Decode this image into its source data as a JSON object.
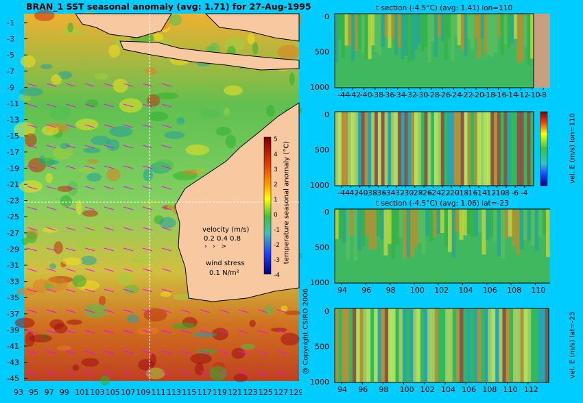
{
  "main_title": "BRAN_1  SST seasonal anomaly  (avg: 1.71) for 27-Aug-1995",
  "copyright": "@ Copyright CSIRO 2006",
  "map": {
    "lat_ticks": [
      "-1",
      "-3",
      "-5",
      "-7",
      "-9",
      "-11",
      "-13",
      "-15",
      "-17",
      "-19",
      "-21",
      "-23",
      "-25",
      "-27",
      "-29",
      "-31",
      "-33",
      "-35",
      "-37",
      "-39",
      "-41",
      "-43",
      "-45"
    ],
    "lon_ticks": [
      "93",
      "95",
      "97",
      "99",
      "101",
      "103",
      "105",
      "107",
      "109",
      "111",
      "113",
      "115",
      "117",
      "119",
      "121",
      "123",
      "125",
      "127",
      "129"
    ],
    "colorbar": {
      "label": "temperature seasonal anomaly (°C)",
      "ticks": [
        "5",
        "4",
        "3",
        "2",
        "1",
        "0",
        "-1",
        "-2",
        "-3",
        "-4"
      ]
    },
    "velocity_legend": {
      "title": "velocity (m/s)",
      "scale": "0.2 0.4 0.8"
    },
    "wind_legend": {
      "title": "wind stress",
      "value": "0.1 N/m²"
    },
    "colors": {
      "land": "#f8c8a0",
      "arrows": "#ff00ff",
      "crosshair": "#ffffff"
    }
  },
  "panels": [
    {
      "title": "t section (-4.5°C)  (avg: 1.41) lon=110",
      "yticks": [
        "0",
        "500",
        "1000"
      ],
      "xticks": [
        "-44",
        "-42",
        "-40",
        "-38",
        "-36",
        "-34",
        "-32",
        "-30",
        "-28",
        "-26",
        "-24",
        "-22",
        "-20",
        "-18",
        "-16",
        "-14",
        "-12",
        "-10",
        "-8",
        "-6",
        "-4"
      ]
    },
    {
      "title": "",
      "yticks": [
        "0",
        "500",
        "1000"
      ],
      "xticks": [
        "-44",
        "-42",
        "-40",
        "-38",
        "-36",
        "-34",
        "-32",
        "-30",
        "-28",
        "-26",
        "-24",
        "-22",
        "-20",
        "-18",
        "-16",
        "-14",
        "-12",
        "-10",
        "-8",
        "-6",
        "-4"
      ],
      "colorbar_label": "vel. E (m/s) lon=110",
      "colorbar_ticks": [
        "0.4",
        "0.2",
        "0",
        "-0.2",
        "-0.4"
      ]
    },
    {
      "title": "t section (-4.5°C)  (avg: 1.06) lat=-23",
      "yticks": [
        "0",
        "500",
        "1000"
      ],
      "xticks": [
        "94",
        "96",
        "98",
        "100",
        "102",
        "104",
        "106",
        "108",
        "110",
        "112"
      ]
    },
    {
      "title": "",
      "yticks": [
        "0",
        "500",
        "1000"
      ],
      "xticks": [
        "94",
        "96",
        "98",
        "100",
        "102",
        "104",
        "106",
        "108",
        "110",
        "112"
      ],
      "colorbar_label": "vel. E (m/s) lat=-23",
      "colorbar_ticks": [
        "0.4",
        "0.2",
        "0",
        "-0.2",
        "-0.4"
      ]
    }
  ],
  "chart_data": [
    {
      "type": "heatmap",
      "title": "BRAN_1  SST seasonal anomaly  (avg: 1.71) for 27-Aug-1995",
      "xlabel": "",
      "ylabel": "",
      "xlim": [
        93,
        130
      ],
      "ylim": [
        -45,
        0
      ],
      "colorbar_range": [
        -4,
        5
      ]
    },
    {
      "type": "heatmap",
      "title": "t section (-4.5°C)  (avg: 1.41) lon=110",
      "xlim": [
        -45,
        -3
      ],
      "ylim": [
        1050,
        0
      ]
    },
    {
      "type": "heatmap",
      "title": "",
      "colorbar_label": "vel. E (m/s) lon=110",
      "colorbar_range": [
        -0.4,
        0.4
      ],
      "xlim": [
        -45,
        -3
      ],
      "ylim": [
        1050,
        0
      ]
    },
    {
      "type": "heatmap",
      "title": "t section (-4.5°C)  (avg: 1.06) lat=-23",
      "xlim": [
        93,
        114
      ],
      "ylim": [
        1050,
        0
      ]
    },
    {
      "type": "heatmap",
      "title": "",
      "colorbar_label": "vel. E (m/s) lat=-23",
      "colorbar_range": [
        -0.4,
        0.4
      ],
      "xlim": [
        93,
        114
      ],
      "ylim": [
        1050,
        0
      ]
    }
  ]
}
